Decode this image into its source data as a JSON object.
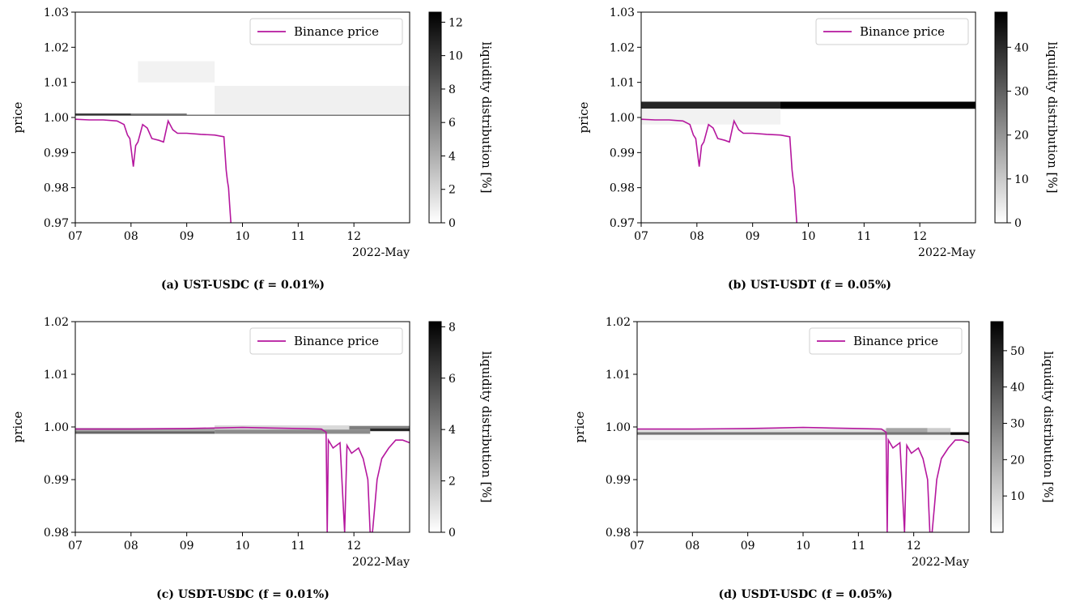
{
  "panels_order": [
    "a",
    "b",
    "c",
    "d"
  ],
  "chart_data": [
    {
      "type": "line",
      "panel": "a",
      "caption": "(a) UST-USDC (f = 0.01%)",
      "ylabel": "price",
      "xlabel": "",
      "date_label": "2022-May",
      "x_ticks": [
        "07",
        "08",
        "09",
        "10",
        "11",
        "12"
      ],
      "xlim": [
        "2022-05-07",
        "2022-05-13"
      ],
      "ylim": [
        0.97,
        1.03
      ],
      "y_ticks": [
        "0.97",
        "0.98",
        "0.99",
        "1.00",
        "1.01",
        "1.02",
        "1.03"
      ],
      "legend": {
        "label": "Binance price",
        "position": "top-right"
      },
      "colorbar": {
        "label": "liquidity distribution [%]",
        "ticks": [
          "0",
          "2",
          "4",
          "6",
          "8",
          "10",
          "12"
        ],
        "max": 12.6
      },
      "line_color": "#b5179e",
      "series": [
        {
          "name": "Binance price",
          "x": [
            "2022-05-07 00:00",
            "2022-05-07 06:00",
            "2022-05-07 12:00",
            "2022-05-07 18:00",
            "2022-05-07 21:00",
            "2022-05-07 22:30",
            "2022-05-07 23:30",
            "2022-05-08 01:00",
            "2022-05-08 02:00",
            "2022-05-08 03:00",
            "2022-05-08 05:00",
            "2022-05-08 07:00",
            "2022-05-08 09:00",
            "2022-05-08 12:00",
            "2022-05-08 14:00",
            "2022-05-08 16:00",
            "2022-05-08 18:00",
            "2022-05-08 20:00",
            "2022-05-08 22:00",
            "2022-05-09 00:00",
            "2022-05-09 06:00",
            "2022-05-09 12:00",
            "2022-05-09 16:00",
            "2022-05-09 17:00",
            "2022-05-09 17:30",
            "2022-05-09 18:00",
            "2022-05-09 18:30",
            "2022-05-09 19:00"
          ],
          "values": [
            0.9995,
            0.9993,
            0.9993,
            0.999,
            0.998,
            0.995,
            0.994,
            0.986,
            0.992,
            0.993,
            0.998,
            0.997,
            0.994,
            0.9935,
            0.993,
            0.999,
            0.9965,
            0.9955,
            0.9955,
            0.9955,
            0.9952,
            0.995,
            0.9945,
            0.985,
            0.982,
            0.98,
            0.975,
            0.97
          ]
        }
      ]
    },
    {
      "type": "line",
      "panel": "b",
      "caption": "(b) UST-USDT (f = 0.05%)",
      "ylabel": "price",
      "xlabel": "",
      "date_label": "2022-May",
      "x_ticks": [
        "07",
        "08",
        "09",
        "10",
        "11",
        "12"
      ],
      "xlim": [
        "2022-05-07",
        "2022-05-13"
      ],
      "ylim": [
        0.97,
        1.03
      ],
      "y_ticks": [
        "0.97",
        "0.98",
        "0.99",
        "1.00",
        "1.01",
        "1.02",
        "1.03"
      ],
      "legend": {
        "label": "Binance price",
        "position": "top-right"
      },
      "colorbar": {
        "label": "liquidity distribution [%]",
        "ticks": [
          "0",
          "10",
          "20",
          "30",
          "40"
        ],
        "max": 48
      },
      "line_color": "#b5179e",
      "series": [
        {
          "name": "Binance price",
          "x": [
            "2022-05-07 00:00",
            "2022-05-07 06:00",
            "2022-05-07 12:00",
            "2022-05-07 18:00",
            "2022-05-07 21:00",
            "2022-05-07 22:30",
            "2022-05-07 23:30",
            "2022-05-08 01:00",
            "2022-05-08 02:00",
            "2022-05-08 03:00",
            "2022-05-08 05:00",
            "2022-05-08 07:00",
            "2022-05-08 09:00",
            "2022-05-08 12:00",
            "2022-05-08 14:00",
            "2022-05-08 16:00",
            "2022-05-08 18:00",
            "2022-05-08 20:00",
            "2022-05-08 22:00",
            "2022-05-09 00:00",
            "2022-05-09 06:00",
            "2022-05-09 12:00",
            "2022-05-09 16:00",
            "2022-05-09 17:00",
            "2022-05-09 17:30",
            "2022-05-09 18:00",
            "2022-05-09 18:30",
            "2022-05-09 19:00"
          ],
          "values": [
            0.9995,
            0.9993,
            0.9993,
            0.999,
            0.998,
            0.995,
            0.994,
            0.986,
            0.992,
            0.993,
            0.998,
            0.997,
            0.994,
            0.9935,
            0.993,
            0.999,
            0.9965,
            0.9955,
            0.9955,
            0.9955,
            0.9952,
            0.995,
            0.9945,
            0.985,
            0.982,
            0.98,
            0.975,
            0.97
          ]
        }
      ]
    },
    {
      "type": "line",
      "panel": "c",
      "caption": "(c) USDT-USDC (f = 0.01%)",
      "ylabel": "price",
      "xlabel": "",
      "date_label": "2022-May",
      "x_ticks": [
        "07",
        "08",
        "09",
        "10",
        "11",
        "12"
      ],
      "xlim": [
        "2022-05-07",
        "2022-05-13"
      ],
      "ylim": [
        0.98,
        1.02
      ],
      "y_ticks": [
        "0.98",
        "0.99",
        "1.00",
        "1.01",
        "1.02"
      ],
      "legend": {
        "label": "Binance price",
        "position": "top-right"
      },
      "colorbar": {
        "label": "liquidity distribution [%]",
        "ticks": [
          "0",
          "2",
          "4",
          "6",
          "8"
        ],
        "max": 8.2
      },
      "line_color": "#b5179e",
      "series": [
        {
          "name": "Binance price",
          "x": [
            "2022-05-07 00:00",
            "2022-05-08 00:00",
            "2022-05-09 00:00",
            "2022-05-09 12:00",
            "2022-05-10 00:00",
            "2022-05-10 12:00",
            "2022-05-11 00:00",
            "2022-05-11 10:00",
            "2022-05-11 12:00",
            "2022-05-11 12:30",
            "2022-05-11 13:00",
            "2022-05-11 15:00",
            "2022-05-11 18:00",
            "2022-05-11 20:00",
            "2022-05-11 21:00",
            "2022-05-11 23:00",
            "2022-05-12 02:00",
            "2022-05-12 04:00",
            "2022-05-12 06:00",
            "2022-05-12 07:00",
            "2022-05-12 08:00",
            "2022-05-12 09:00",
            "2022-05-12 10:00",
            "2022-05-12 12:00",
            "2022-05-12 15:00",
            "2022-05-12 18:00",
            "2022-05-12 21:00",
            "2022-05-13 00:00"
          ],
          "values": [
            0.9996,
            0.9996,
            0.9997,
            0.9998,
            0.9999,
            0.9998,
            0.9997,
            0.9996,
            0.999,
            0.98,
            0.9975,
            0.996,
            0.997,
            0.98,
            0.9965,
            0.995,
            0.996,
            0.994,
            0.99,
            0.98,
            0.98,
            0.985,
            0.99,
            0.994,
            0.996,
            0.9975,
            0.9975,
            0.997
          ]
        }
      ]
    },
    {
      "type": "line",
      "panel": "d",
      "caption": "(d) USDT-USDC (f = 0.05%)",
      "ylabel": "price",
      "xlabel": "",
      "date_label": "2022-May",
      "x_ticks": [
        "07",
        "08",
        "09",
        "10",
        "11",
        "12"
      ],
      "xlim": [
        "2022-05-07",
        "2022-05-13"
      ],
      "ylim": [
        0.98,
        1.02
      ],
      "y_ticks": [
        "0.98",
        "0.99",
        "1.00",
        "1.01",
        "1.02"
      ],
      "legend": {
        "label": "Binance price",
        "position": "top-right"
      },
      "colorbar": {
        "label": "liquidity distribution [%]",
        "ticks": [
          "10",
          "20",
          "30",
          "40",
          "50"
        ],
        "max": 58
      },
      "line_color": "#b5179e",
      "series": [
        {
          "name": "Binance price",
          "x": [
            "2022-05-07 00:00",
            "2022-05-08 00:00",
            "2022-05-09 00:00",
            "2022-05-09 12:00",
            "2022-05-10 00:00",
            "2022-05-10 12:00",
            "2022-05-11 00:00",
            "2022-05-11 10:00",
            "2022-05-11 12:00",
            "2022-05-11 12:30",
            "2022-05-11 13:00",
            "2022-05-11 15:00",
            "2022-05-11 18:00",
            "2022-05-11 20:00",
            "2022-05-11 21:00",
            "2022-05-11 23:00",
            "2022-05-12 02:00",
            "2022-05-12 04:00",
            "2022-05-12 06:00",
            "2022-05-12 07:00",
            "2022-05-12 08:00",
            "2022-05-12 09:00",
            "2022-05-12 10:00",
            "2022-05-12 12:00",
            "2022-05-12 15:00",
            "2022-05-12 18:00",
            "2022-05-12 21:00",
            "2022-05-13 00:00"
          ],
          "values": [
            0.9996,
            0.9996,
            0.9997,
            0.9998,
            0.9999,
            0.9998,
            0.9997,
            0.9996,
            0.999,
            0.98,
            0.9975,
            0.996,
            0.997,
            0.98,
            0.9965,
            0.995,
            0.996,
            0.994,
            0.99,
            0.98,
            0.98,
            0.985,
            0.99,
            0.994,
            0.996,
            0.9975,
            0.9975,
            0.997
          ]
        }
      ]
    }
  ],
  "heatmap": {
    "a": [
      {
        "x0": "2022-05-07",
        "x1": "2022-05-13",
        "y0": 1.0005,
        "y1": 1.0008,
        "level": 0.55
      },
      {
        "x0": "2022-05-07",
        "x1": "2022-05-08",
        "y0": 1.0008,
        "y1": 1.0011,
        "level": 0.9
      },
      {
        "x0": "2022-05-08",
        "x1": "2022-05-09",
        "y0": 1.0008,
        "y1": 1.0011,
        "level": 0.6
      },
      {
        "x0": "2022-05-08 03:00",
        "x1": "2022-05-09 12:00",
        "y0": 1.01,
        "y1": 1.016,
        "level": 0.05
      },
      {
        "x0": "2022-05-09 12:00",
        "x1": "2022-05-13",
        "y0": 1.001,
        "y1": 1.009,
        "level": 0.06
      }
    ],
    "b": [
      {
        "x0": "2022-05-07",
        "x1": "2022-05-13",
        "y0": 1.0025,
        "y1": 1.0045,
        "level": 0.85
      },
      {
        "x0": "2022-05-09 12:00",
        "x1": "2022-05-13",
        "y0": 1.0025,
        "y1": 1.0045,
        "level": 1.0
      },
      {
        "x0": "2022-05-07",
        "x1": "2022-05-09 12:00",
        "y0": 0.998,
        "y1": 1.0025,
        "level": 0.05
      }
    ],
    "c": [
      {
        "x0": "2022-05-07",
        "x1": "2022-05-09 12:00",
        "y0": 0.9987,
        "y1": 0.9992,
        "level": 0.6
      },
      {
        "x0": "2022-05-07",
        "x1": "2022-05-09 12:00",
        "y0": 0.9992,
        "y1": 0.9998,
        "level": 0.35
      },
      {
        "x0": "2022-05-09 12:00",
        "x1": "2022-05-11 22:00",
        "y0": 0.9995,
        "y1": 1.0003,
        "level": 0.15
      },
      {
        "x0": "2022-05-09 12:00",
        "x1": "2022-05-12 07:00",
        "y0": 0.9987,
        "y1": 0.9995,
        "level": 0.45
      },
      {
        "x0": "2022-05-11 22:00",
        "x1": "2022-05-13",
        "y0": 0.9995,
        "y1": 1.0002,
        "level": 0.5
      },
      {
        "x0": "2022-05-12 07:00",
        "x1": "2022-05-13",
        "y0": 0.9992,
        "y1": 0.9997,
        "level": 0.85
      }
    ],
    "d": [
      {
        "x0": "2022-05-07",
        "x1": "2022-05-13",
        "y0": 0.9985,
        "y1": 0.999,
        "level": 0.55
      },
      {
        "x0": "2022-05-07",
        "x1": "2022-05-11 12:00",
        "y0": 0.999,
        "y1": 0.9996,
        "level": 0.12
      },
      {
        "x0": "2022-05-11 12:00",
        "x1": "2022-05-12 06:00",
        "y0": 0.999,
        "y1": 0.9998,
        "level": 0.35
      },
      {
        "x0": "2022-05-12 06:00",
        "x1": "2022-05-12 16:00",
        "y0": 0.999,
        "y1": 0.9998,
        "level": 0.2
      },
      {
        "x0": "2022-05-12 16:00",
        "x1": "2022-05-13",
        "y0": 0.9983,
        "y1": 0.999,
        "level": 1.0
      },
      {
        "x0": "2022-05-07",
        "x1": "2022-05-13",
        "y0": 0.9975,
        "y1": 0.9985,
        "level": 0.04
      }
    ]
  }
}
